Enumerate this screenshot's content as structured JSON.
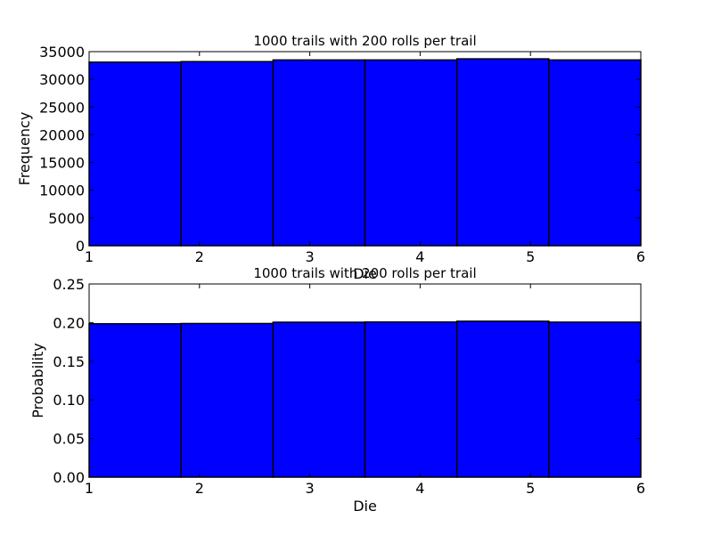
{
  "colors": {
    "bar_fill": "#0000ff",
    "bar_edge": "#000000",
    "axes_edge": "#000000",
    "background": "#ffffff"
  },
  "chart_data": [
    {
      "type": "bar",
      "title": "1000 trails with 200 rolls per trail",
      "xlabel": "Die",
      "ylabel": "Frequency",
      "xlim": [
        1,
        6
      ],
      "ylim": [
        0,
        35000
      ],
      "xticks": [
        1,
        2,
        3,
        4,
        5,
        6
      ],
      "xtick_labels": [
        "1",
        "2",
        "3",
        "4",
        "5",
        "6"
      ],
      "yticks": [
        0,
        5000,
        10000,
        15000,
        20000,
        25000,
        30000,
        35000
      ],
      "ytick_labels": [
        "0",
        "5000",
        "10000",
        "15000",
        "20000",
        "25000",
        "30000",
        "35000"
      ],
      "bin_edges": [
        1,
        1.8333,
        2.6667,
        3.5,
        4.3333,
        5.1667,
        6
      ],
      "values": [
        33100,
        33200,
        33500,
        33500,
        33700,
        33500
      ],
      "grid": false,
      "legend": false
    },
    {
      "type": "bar",
      "title": "1000 trails with 200 rolls per trail",
      "xlabel": "Die",
      "ylabel": "Probability",
      "xlim": [
        1,
        6
      ],
      "ylim": [
        0,
        0.25
      ],
      "xticks": [
        1,
        2,
        3,
        4,
        5,
        6
      ],
      "xtick_labels": [
        "1",
        "2",
        "3",
        "4",
        "5",
        "6"
      ],
      "yticks": [
        0,
        0.05,
        0.1,
        0.15,
        0.2,
        0.25
      ],
      "ytick_labels": [
        "0.00",
        "0.05",
        "0.10",
        "0.15",
        "0.20",
        "0.25"
      ],
      "bin_edges": [
        1,
        1.8333,
        2.6667,
        3.5,
        4.3333,
        5.1667,
        6
      ],
      "values": [
        0.1985,
        0.1988,
        0.2005,
        0.2008,
        0.2018,
        0.2006
      ],
      "grid": false,
      "legend": false
    }
  ]
}
